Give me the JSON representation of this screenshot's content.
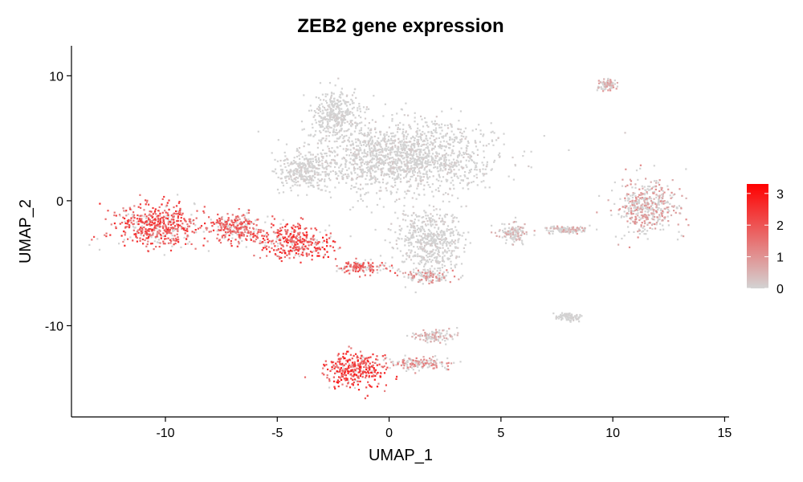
{
  "chart_data": {
    "type": "scatter",
    "title": "ZEB2 gene expression",
    "xlabel": "UMAP_1",
    "ylabel": "UMAP_2",
    "xlim": [
      -14.2,
      15.2
    ],
    "ylim": [
      -17.3,
      12.4
    ],
    "xticks": [
      -10,
      -5,
      0,
      5,
      10,
      15
    ],
    "xtick_labels": [
      "-10",
      "-5",
      "0",
      "5",
      "10",
      "15"
    ],
    "yticks": [
      -10,
      0,
      10
    ],
    "ytick_labels": [
      "-10",
      "0",
      "10"
    ],
    "grid": false,
    "legend": {
      "position": "right",
      "kind": "colorbar",
      "min": 0,
      "max": 3.3,
      "ticks": [
        0,
        1,
        2,
        3
      ],
      "tick_labels": [
        "0",
        "1",
        "2",
        "3"
      ]
    },
    "colors": {
      "low": "#d3d3d3",
      "high": "#ff0000"
    },
    "clusters": [
      {
        "center": [
          0.5,
          3.5
        ],
        "spread": [
          4.3,
          3.2
        ],
        "level": 0.12
      },
      {
        "center": [
          -2.4,
          6.8
        ],
        "spread": [
          1.2,
          2.2
        ],
        "level": 0.08
      },
      {
        "center": [
          -3.8,
          2.4
        ],
        "spread": [
          1.3,
          1.6
        ],
        "level": 0.1
      },
      {
        "center": [
          1.8,
          -3.2
        ],
        "spread": [
          1.6,
          2.6
        ],
        "level": 0.12
      },
      {
        "center": [
          -10.3,
          -1.9
        ],
        "spread": [
          2.2,
          1.9
        ],
        "level": 1.9
      },
      {
        "center": [
          -6.8,
          -2.2
        ],
        "spread": [
          1.5,
          1.3
        ],
        "level": 1.7
      },
      {
        "center": [
          -4.2,
          -3.3
        ],
        "spread": [
          1.8,
          1.4
        ],
        "level": 2.0
      },
      {
        "center": [
          -1.3,
          -5.3
        ],
        "spread": [
          1.2,
          0.6
        ],
        "level": 1.6
      },
      {
        "center": [
          1.8,
          -6.0
        ],
        "spread": [
          1.2,
          0.6
        ],
        "level": 0.9
      },
      {
        "center": [
          -1.5,
          -13.5
        ],
        "spread": [
          1.5,
          1.5
        ],
        "level": 2.1
      },
      {
        "center": [
          1.3,
          -13.0
        ],
        "spread": [
          1.6,
          0.5
        ],
        "level": 1.0
      },
      {
        "center": [
          2.0,
          -10.8
        ],
        "spread": [
          1.0,
          0.5
        ],
        "level": 0.6
      },
      {
        "center": [
          11.5,
          -0.5
        ],
        "spread": [
          1.5,
          2.4
        ],
        "level": 0.8
      },
      {
        "center": [
          9.8,
          9.3
        ],
        "spread": [
          0.5,
          0.5
        ],
        "level": 0.7
      },
      {
        "center": [
          5.6,
          -2.6
        ],
        "spread": [
          0.7,
          0.9
        ],
        "level": 0.5
      },
      {
        "center": [
          8.0,
          -2.3
        ],
        "spread": [
          1.2,
          0.35
        ],
        "level": 0.6
      },
      {
        "center": [
          8.0,
          -9.3
        ],
        "spread": [
          0.6,
          0.35
        ],
        "level": 0.05
      }
    ]
  }
}
